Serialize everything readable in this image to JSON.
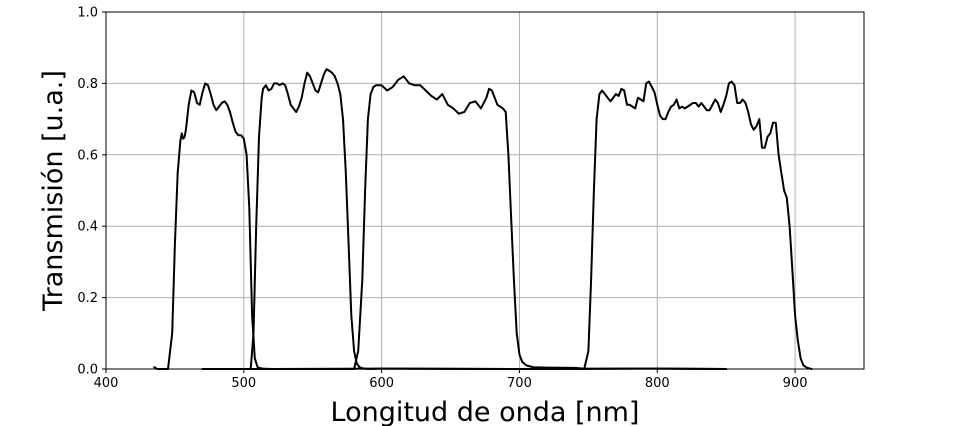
{
  "chart_data": {
    "type": "line",
    "title": "",
    "xlabel": "Longitud de onda [nm]",
    "ylabel": "Transmisión [u.a.]",
    "xlim": [
      400,
      950
    ],
    "ylim": [
      0.0,
      1.0
    ],
    "xticks": [
      400,
      500,
      600,
      700,
      800,
      900
    ],
    "xtick_labels": [
      "400",
      "500",
      "600",
      "700",
      "800",
      "900"
    ],
    "yticks": [
      0.0,
      0.2,
      0.4,
      0.6,
      0.8,
      1.0
    ],
    "ytick_labels": [
      "0.0",
      "0.2",
      "0.4",
      "0.6",
      "0.8",
      "1.0"
    ],
    "grid": true,
    "line_color": "#000000",
    "series": [
      {
        "x": [
          435,
          436,
          437,
          445,
          448,
          450,
          452,
          454,
          455,
          456,
          457,
          458,
          460,
          462,
          464,
          466,
          468,
          470,
          472,
          474,
          476,
          478,
          480,
          482,
          484,
          486,
          488,
          490,
          492,
          494,
          496,
          498,
          500,
          502,
          504,
          505,
          506,
          508,
          510,
          512,
          514,
          520,
          600,
          700,
          800,
          850
        ],
        "y": [
          0.005,
          0.003,
          0.0,
          0.0,
          0.1,
          0.35,
          0.55,
          0.64,
          0.66,
          0.645,
          0.65,
          0.67,
          0.74,
          0.78,
          0.775,
          0.745,
          0.74,
          0.775,
          0.8,
          0.795,
          0.77,
          0.74,
          0.725,
          0.735,
          0.745,
          0.75,
          0.74,
          0.72,
          0.69,
          0.665,
          0.655,
          0.655,
          0.645,
          0.6,
          0.45,
          0.3,
          0.15,
          0.03,
          0.005,
          0.002,
          0.001,
          0.0,
          0.001,
          0.0,
          0.001,
          0.0
        ]
      },
      {
        "x": [
          470,
          505,
          507,
          509,
          511,
          513,
          514,
          516,
          518,
          520,
          522,
          524,
          526,
          528,
          530,
          532,
          534,
          536,
          538,
          540,
          542,
          544,
          546,
          548,
          550,
          552,
          554,
          556,
          558,
          560,
          562,
          564,
          566,
          568,
          570,
          572,
          574,
          576,
          578,
          580,
          582,
          584,
          586,
          588,
          590,
          600,
          700,
          800,
          850
        ],
        "y": [
          0.0,
          0.0,
          0.1,
          0.4,
          0.65,
          0.76,
          0.785,
          0.795,
          0.78,
          0.785,
          0.8,
          0.8,
          0.795,
          0.8,
          0.795,
          0.77,
          0.74,
          0.73,
          0.72,
          0.735,
          0.76,
          0.8,
          0.83,
          0.82,
          0.8,
          0.78,
          0.775,
          0.8,
          0.825,
          0.84,
          0.835,
          0.83,
          0.82,
          0.8,
          0.77,
          0.7,
          0.55,
          0.35,
          0.15,
          0.05,
          0.015,
          0.005,
          0.002,
          0.001,
          0.0,
          0.001,
          0.0,
          0.001,
          0.0
        ]
      },
      {
        "x": [
          470,
          580,
          583,
          586,
          588,
          590,
          592,
          594,
          596,
          600,
          604,
          608,
          612,
          616,
          618,
          620,
          624,
          628,
          632,
          636,
          640,
          644,
          648,
          652,
          656,
          660,
          664,
          668,
          672,
          676,
          678,
          680,
          684,
          688,
          690,
          692,
          694,
          696,
          698,
          700,
          702,
          705,
          710,
          720,
          740,
          750
        ],
        "y": [
          0.0,
          0.0,
          0.05,
          0.25,
          0.5,
          0.7,
          0.77,
          0.79,
          0.795,
          0.795,
          0.78,
          0.79,
          0.81,
          0.82,
          0.81,
          0.8,
          0.795,
          0.795,
          0.78,
          0.765,
          0.755,
          0.77,
          0.74,
          0.73,
          0.715,
          0.72,
          0.745,
          0.75,
          0.73,
          0.76,
          0.785,
          0.78,
          0.74,
          0.73,
          0.72,
          0.6,
          0.42,
          0.25,
          0.1,
          0.04,
          0.02,
          0.01,
          0.005,
          0.004,
          0.003,
          0.0
        ]
      },
      {
        "x": [
          740,
          747,
          750,
          752,
          754,
          756,
          758,
          760,
          762,
          764,
          766,
          768,
          770,
          772,
          774,
          776,
          778,
          780,
          782,
          784,
          786,
          788,
          790,
          792,
          794,
          796,
          798,
          800,
          802,
          804,
          806,
          808,
          810,
          812,
          814,
          816,
          818,
          820,
          822,
          824,
          826,
          828,
          830,
          832,
          834,
          836,
          838,
          840,
          842,
          844,
          846,
          848,
          850,
          852,
          854,
          856,
          858,
          860,
          862,
          864,
          866,
          868,
          870,
          872,
          874,
          876,
          878,
          880,
          882,
          884,
          886,
          888,
          890,
          892,
          894,
          896,
          898,
          900,
          902,
          904,
          906,
          908,
          910,
          912
        ],
        "y": [
          0.0,
          0.0,
          0.05,
          0.25,
          0.5,
          0.7,
          0.77,
          0.78,
          0.77,
          0.76,
          0.75,
          0.76,
          0.77,
          0.765,
          0.785,
          0.78,
          0.74,
          0.74,
          0.735,
          0.73,
          0.76,
          0.755,
          0.75,
          0.8,
          0.805,
          0.79,
          0.775,
          0.74,
          0.71,
          0.7,
          0.7,
          0.72,
          0.735,
          0.74,
          0.755,
          0.73,
          0.735,
          0.73,
          0.735,
          0.74,
          0.745,
          0.745,
          0.735,
          0.745,
          0.735,
          0.725,
          0.725,
          0.74,
          0.755,
          0.745,
          0.72,
          0.74,
          0.765,
          0.8,
          0.805,
          0.795,
          0.745,
          0.745,
          0.755,
          0.745,
          0.72,
          0.685,
          0.67,
          0.68,
          0.7,
          0.62,
          0.62,
          0.65,
          0.66,
          0.69,
          0.69,
          0.6,
          0.55,
          0.5,
          0.48,
          0.4,
          0.28,
          0.15,
          0.08,
          0.03,
          0.01,
          0.005,
          0.002,
          0.0
        ]
      }
    ]
  }
}
